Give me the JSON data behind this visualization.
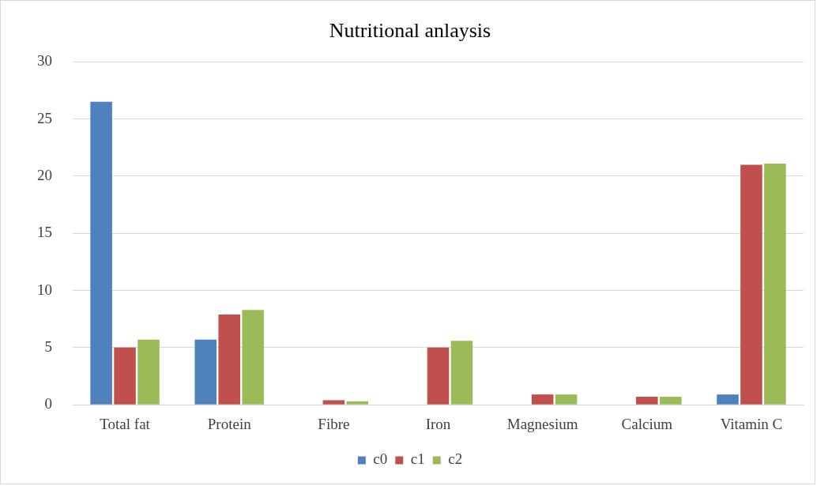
{
  "chart_data": {
    "type": "bar",
    "title": "Nutritional anlaysis",
    "categories": [
      "Total fat",
      "Protein",
      "Fibre",
      "Iron",
      "Magnesium",
      "Calcium",
      "Vitamin C"
    ],
    "series": [
      {
        "name": "c0",
        "color": "#4f81bd",
        "values": [
          26.5,
          5.7,
          0,
          0,
          0,
          0,
          0.9
        ]
      },
      {
        "name": "c1",
        "color": "#c0504d",
        "values": [
          5.0,
          7.9,
          0.4,
          5.0,
          0.9,
          0.7,
          21.0
        ]
      },
      {
        "name": "c2",
        "color": "#9bbb59",
        "values": [
          5.7,
          8.3,
          0.3,
          5.6,
          0.9,
          0.7,
          21.1
        ]
      }
    ],
    "ylim": [
      0,
      30
    ],
    "yticks": [
      0,
      5,
      10,
      15,
      20,
      25,
      30
    ],
    "grid": "y",
    "legend": "bottom"
  }
}
